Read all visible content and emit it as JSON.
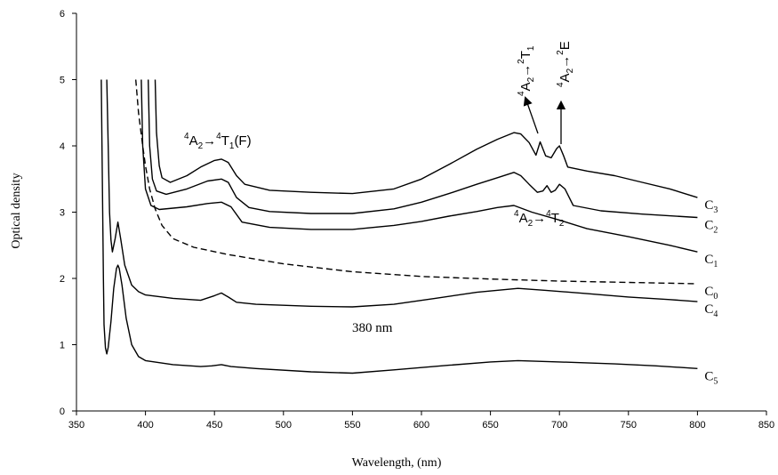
{
  "chart_data": {
    "type": "line",
    "xlabel": "Wavelength, (nm)",
    "ylabel": "Optical density",
    "xlim": [
      350,
      850
    ],
    "ylim": [
      0,
      6
    ],
    "x_ticks": [
      "350",
      "400",
      "450",
      "500",
      "550",
      "600",
      "650",
      "700",
      "750",
      "800",
      "850"
    ],
    "y_ticks": [
      "0",
      "1",
      "2",
      "3",
      "4",
      "5",
      "6"
    ],
    "grid": false,
    "legend": "none",
    "series": [
      {
        "name": "C3",
        "label_base": "C",
        "label_sub": "3",
        "style": "solid",
        "points": [
          [
            407,
            5.0
          ],
          [
            408,
            4.2
          ],
          [
            410,
            3.7
          ],
          [
            412,
            3.52
          ],
          [
            418,
            3.45
          ],
          [
            430,
            3.55
          ],
          [
            440,
            3.68
          ],
          [
            450,
            3.78
          ],
          [
            455,
            3.8
          ],
          [
            460,
            3.75
          ],
          [
            466,
            3.55
          ],
          [
            472,
            3.42
          ],
          [
            490,
            3.33
          ],
          [
            520,
            3.3
          ],
          [
            550,
            3.28
          ],
          [
            580,
            3.35
          ],
          [
            600,
            3.5
          ],
          [
            620,
            3.72
          ],
          [
            640,
            3.95
          ],
          [
            655,
            4.1
          ],
          [
            667,
            4.2
          ],
          [
            672,
            4.18
          ],
          [
            678,
            4.05
          ],
          [
            683,
            3.86
          ],
          [
            686,
            4.06
          ],
          [
            690,
            3.85
          ],
          [
            694,
            3.82
          ],
          [
            698,
            3.96
          ],
          [
            700,
            4.0
          ],
          [
            703,
            3.85
          ],
          [
            706,
            3.68
          ],
          [
            720,
            3.62
          ],
          [
            740,
            3.55
          ],
          [
            760,
            3.45
          ],
          [
            780,
            3.35
          ],
          [
            800,
            3.22
          ]
        ]
      },
      {
        "name": "C2",
        "label_base": "C",
        "label_sub": "2",
        "style": "solid",
        "points": [
          [
            402,
            5.0
          ],
          [
            403,
            4.0
          ],
          [
            405,
            3.5
          ],
          [
            408,
            3.32
          ],
          [
            415,
            3.27
          ],
          [
            430,
            3.35
          ],
          [
            445,
            3.47
          ],
          [
            455,
            3.5
          ],
          [
            460,
            3.45
          ],
          [
            466,
            3.22
          ],
          [
            475,
            3.07
          ],
          [
            490,
            3.01
          ],
          [
            520,
            2.98
          ],
          [
            550,
            2.98
          ],
          [
            580,
            3.05
          ],
          [
            600,
            3.15
          ],
          [
            620,
            3.28
          ],
          [
            640,
            3.42
          ],
          [
            655,
            3.52
          ],
          [
            667,
            3.6
          ],
          [
            672,
            3.55
          ],
          [
            678,
            3.42
          ],
          [
            684,
            3.3
          ],
          [
            688,
            3.32
          ],
          [
            691,
            3.4
          ],
          [
            694,
            3.3
          ],
          [
            697,
            3.33
          ],
          [
            700,
            3.42
          ],
          [
            704,
            3.35
          ],
          [
            710,
            3.1
          ],
          [
            730,
            3.02
          ],
          [
            760,
            2.97
          ],
          [
            800,
            2.92
          ]
        ]
      },
      {
        "name": "C1",
        "label_base": "C",
        "label_sub": "1",
        "style": "solid",
        "points": [
          [
            397,
            5.0
          ],
          [
            398,
            4.0
          ],
          [
            400,
            3.35
          ],
          [
            404,
            3.1
          ],
          [
            410,
            3.04
          ],
          [
            430,
            3.08
          ],
          [
            445,
            3.13
          ],
          [
            455,
            3.15
          ],
          [
            462,
            3.08
          ],
          [
            470,
            2.85
          ],
          [
            490,
            2.77
          ],
          [
            520,
            2.74
          ],
          [
            550,
            2.74
          ],
          [
            580,
            2.8
          ],
          [
            600,
            2.86
          ],
          [
            620,
            2.94
          ],
          [
            640,
            3.01
          ],
          [
            655,
            3.07
          ],
          [
            667,
            3.1
          ],
          [
            680,
            3.0
          ],
          [
            700,
            2.88
          ],
          [
            720,
            2.75
          ],
          [
            750,
            2.63
          ],
          [
            780,
            2.5
          ],
          [
            800,
            2.4
          ]
        ]
      },
      {
        "name": "C0",
        "label_base": "C",
        "label_sub": "0",
        "style": "dashed",
        "points": [
          [
            393,
            5.0
          ],
          [
            395,
            4.5
          ],
          [
            398,
            4.0
          ],
          [
            400,
            3.7
          ],
          [
            403,
            3.35
          ],
          [
            407,
            3.05
          ],
          [
            412,
            2.8
          ],
          [
            420,
            2.6
          ],
          [
            435,
            2.47
          ],
          [
            460,
            2.36
          ],
          [
            500,
            2.22
          ],
          [
            550,
            2.1
          ],
          [
            600,
            2.03
          ],
          [
            650,
            1.99
          ],
          [
            700,
            1.96
          ],
          [
            750,
            1.94
          ],
          [
            800,
            1.92
          ]
        ]
      },
      {
        "name": "C4",
        "label_base": "C",
        "label_sub": "4",
        "style": "solid",
        "points": [
          [
            372,
            5.0
          ],
          [
            373,
            4.0
          ],
          [
            374,
            3.0
          ],
          [
            375,
            2.58
          ],
          [
            376,
            2.4
          ],
          [
            378,
            2.6
          ],
          [
            380,
            2.85
          ],
          [
            382,
            2.6
          ],
          [
            385,
            2.2
          ],
          [
            390,
            1.9
          ],
          [
            395,
            1.8
          ],
          [
            400,
            1.75
          ],
          [
            420,
            1.7
          ],
          [
            440,
            1.67
          ],
          [
            450,
            1.74
          ],
          [
            455,
            1.78
          ],
          [
            460,
            1.72
          ],
          [
            466,
            1.64
          ],
          [
            480,
            1.61
          ],
          [
            520,
            1.58
          ],
          [
            550,
            1.57
          ],
          [
            580,
            1.61
          ],
          [
            610,
            1.7
          ],
          [
            640,
            1.79
          ],
          [
            670,
            1.85
          ],
          [
            690,
            1.82
          ],
          [
            720,
            1.77
          ],
          [
            750,
            1.72
          ],
          [
            780,
            1.68
          ],
          [
            800,
            1.65
          ]
        ]
      },
      {
        "name": "C5",
        "label_base": "C",
        "label_sub": "5",
        "style": "solid",
        "points": [
          [
            368,
            5.0
          ],
          [
            368.5,
            4.0
          ],
          [
            369,
            3.0
          ],
          [
            369.5,
            2.0
          ],
          [
            370,
            1.3
          ],
          [
            371,
            0.95
          ],
          [
            372,
            0.86
          ],
          [
            373,
            0.96
          ],
          [
            375,
            1.35
          ],
          [
            377,
            1.85
          ],
          [
            379,
            2.15
          ],
          [
            380,
            2.2
          ],
          [
            381,
            2.15
          ],
          [
            383,
            1.9
          ],
          [
            386,
            1.4
          ],
          [
            390,
            1.0
          ],
          [
            395,
            0.82
          ],
          [
            400,
            0.76
          ],
          [
            420,
            0.7
          ],
          [
            440,
            0.67
          ],
          [
            448,
            0.68
          ],
          [
            455,
            0.7
          ],
          [
            462,
            0.67
          ],
          [
            480,
            0.64
          ],
          [
            520,
            0.59
          ],
          [
            550,
            0.57
          ],
          [
            580,
            0.62
          ],
          [
            620,
            0.69
          ],
          [
            650,
            0.74
          ],
          [
            670,
            0.76
          ],
          [
            700,
            0.74
          ],
          [
            740,
            0.71
          ],
          [
            770,
            0.68
          ],
          [
            800,
            0.64
          ]
        ]
      }
    ],
    "annotations": {
      "band_380": "380 nm",
      "t1f": {
        "s1": "4",
        "b1": "A",
        "sb1": "2",
        "arrow": "→",
        "s2": "4",
        "b2": "T",
        "sb2": "1",
        "tail": "(F)"
      },
      "t2": {
        "s1": "4",
        "b1": "A",
        "sb1": "2",
        "arrow": "→",
        "s2": "4",
        "b2": "T",
        "sb2": "2"
      },
      "t2t1": {
        "s1": "4",
        "b1": "A",
        "sb1": "2",
        "arrow": "→",
        "s2": "2",
        "b2": "T",
        "sb2": "1"
      },
      "t2e": {
        "s1": "4",
        "b1": "A",
        "sb1": "2",
        "arrow": "→",
        "s2": "2",
        "b2": "E"
      }
    }
  }
}
